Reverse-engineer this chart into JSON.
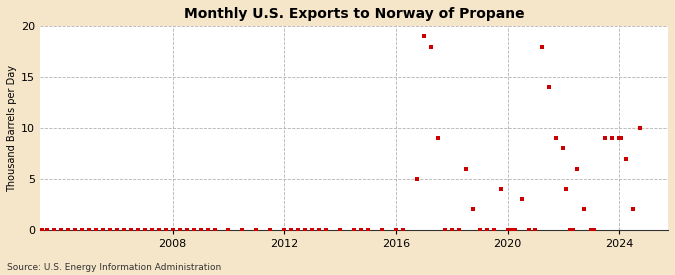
{
  "title": "Monthly U.S. Exports to Norway of Propane",
  "ylabel": "Thousand Barrels per Day",
  "source": "Source: U.S. Energy Information Administration",
  "background_color": "#f5e6ca",
  "plot_background_color": "#ffffff",
  "point_color": "#cc0000",
  "ylim": [
    0,
    20
  ],
  "yticks": [
    0,
    5,
    10,
    15,
    20
  ],
  "xlim_start": 2003.25,
  "xlim_end": 2025.75,
  "xticks": [
    2008,
    2012,
    2016,
    2020,
    2024
  ],
  "data_points": [
    [
      2003.33,
      0
    ],
    [
      2003.5,
      0
    ],
    [
      2003.75,
      0
    ],
    [
      2004.0,
      0
    ],
    [
      2004.25,
      0
    ],
    [
      2004.5,
      0
    ],
    [
      2004.75,
      0
    ],
    [
      2005.0,
      0
    ],
    [
      2005.25,
      0
    ],
    [
      2005.5,
      0
    ],
    [
      2005.75,
      0
    ],
    [
      2006.0,
      0
    ],
    [
      2006.25,
      0
    ],
    [
      2006.5,
      0
    ],
    [
      2006.75,
      0
    ],
    [
      2007.0,
      0
    ],
    [
      2007.25,
      0
    ],
    [
      2007.5,
      0
    ],
    [
      2007.75,
      0
    ],
    [
      2008.0,
      0
    ],
    [
      2008.25,
      0
    ],
    [
      2008.5,
      0
    ],
    [
      2008.75,
      0
    ],
    [
      2009.0,
      0
    ],
    [
      2009.25,
      0
    ],
    [
      2009.5,
      0
    ],
    [
      2010.0,
      0
    ],
    [
      2010.5,
      0
    ],
    [
      2011.0,
      0
    ],
    [
      2011.5,
      0
    ],
    [
      2012.0,
      0
    ],
    [
      2012.25,
      0
    ],
    [
      2012.5,
      0
    ],
    [
      2012.75,
      0
    ],
    [
      2013.0,
      0
    ],
    [
      2013.25,
      0
    ],
    [
      2013.5,
      0
    ],
    [
      2014.0,
      0
    ],
    [
      2014.5,
      0
    ],
    [
      2014.75,
      0
    ],
    [
      2015.0,
      0
    ],
    [
      2015.5,
      0
    ],
    [
      2016.0,
      0
    ],
    [
      2016.25,
      0
    ],
    [
      2016.75,
      5
    ],
    [
      2017.0,
      19
    ],
    [
      2017.25,
      18
    ],
    [
      2017.5,
      9
    ],
    [
      2017.75,
      0
    ],
    [
      2018.0,
      0
    ],
    [
      2018.25,
      0
    ],
    [
      2018.5,
      6
    ],
    [
      2018.75,
      2
    ],
    [
      2019.0,
      0
    ],
    [
      2019.25,
      0
    ],
    [
      2019.5,
      0
    ],
    [
      2019.75,
      4
    ],
    [
      2020.0,
      0
    ],
    [
      2020.08,
      0
    ],
    [
      2020.17,
      0
    ],
    [
      2020.25,
      0
    ],
    [
      2020.5,
      3
    ],
    [
      2020.75,
      0
    ],
    [
      2021.0,
      0
    ],
    [
      2021.25,
      18
    ],
    [
      2021.5,
      14
    ],
    [
      2021.75,
      9
    ],
    [
      2022.0,
      8
    ],
    [
      2022.08,
      4
    ],
    [
      2022.25,
      0
    ],
    [
      2022.33,
      0
    ],
    [
      2022.5,
      6
    ],
    [
      2022.75,
      2
    ],
    [
      2023.0,
      0
    ],
    [
      2023.08,
      0
    ],
    [
      2023.5,
      9
    ],
    [
      2023.75,
      9
    ],
    [
      2024.0,
      9
    ],
    [
      2024.08,
      9
    ],
    [
      2024.25,
      7
    ],
    [
      2024.5,
      2
    ],
    [
      2024.75,
      10
    ]
  ]
}
